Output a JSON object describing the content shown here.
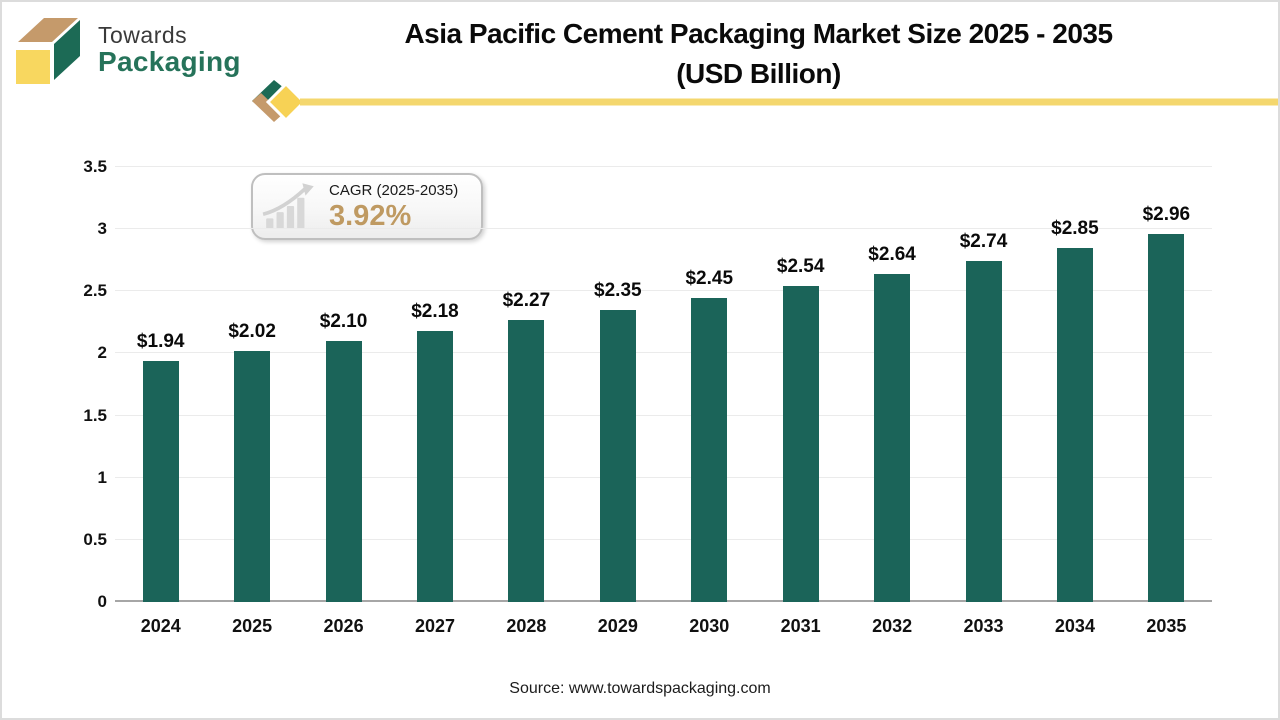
{
  "logo": {
    "line1": "Towards",
    "line2": "Packaging",
    "colors": {
      "top_face": "#c59a6b",
      "side_face": "#1c6a55",
      "front_face": "#f8d75f",
      "line1_text": "#3a3a3a",
      "line2_text": "#26735a"
    }
  },
  "title": {
    "line1": "Asia Pacific Cement Packaging Market Size 2025 - 2035",
    "line2": "(USD Billion)"
  },
  "divider": {
    "line_color": "#f4d76e",
    "diamond_color": "#f7d255",
    "chevron_green": "#1c6a55",
    "chevron_tan": "#c59a6b"
  },
  "cagr_badge": {
    "label": "CAGR (2025-2035)",
    "value": "3.92%",
    "value_color": "#bf9a62",
    "icon": "growth-chart-icon"
  },
  "chart_data": {
    "type": "bar",
    "title": "Asia Pacific Cement Packaging Market Size 2025 - 2035 (USD Billion)",
    "categories": [
      "2024",
      "2025",
      "2026",
      "2027",
      "2028",
      "2029",
      "2030",
      "2031",
      "2032",
      "2033",
      "2034",
      "2035"
    ],
    "values": [
      1.94,
      2.02,
      2.1,
      2.18,
      2.27,
      2.35,
      2.45,
      2.54,
      2.64,
      2.74,
      2.85,
      2.96
    ],
    "labels": [
      "$1.94",
      "$2.02",
      "$2.10",
      "$2.18",
      "$2.27",
      "$2.35",
      "$2.45",
      "$2.54",
      "$2.64",
      "$2.74",
      "$2.85",
      "$2.96"
    ],
    "xlabel": "",
    "ylabel": "",
    "ylim": [
      0,
      3.5
    ],
    "yticks": [
      0,
      0.5,
      1,
      1.5,
      2,
      2.5,
      3,
      3.5
    ],
    "bar_color": "#1b6459",
    "grid": true,
    "gridline_color": "#ebebeb",
    "baseline_color": "#a6a6a6",
    "legend": false
  },
  "source": {
    "text": "Source: www.towardspackaging.com"
  }
}
